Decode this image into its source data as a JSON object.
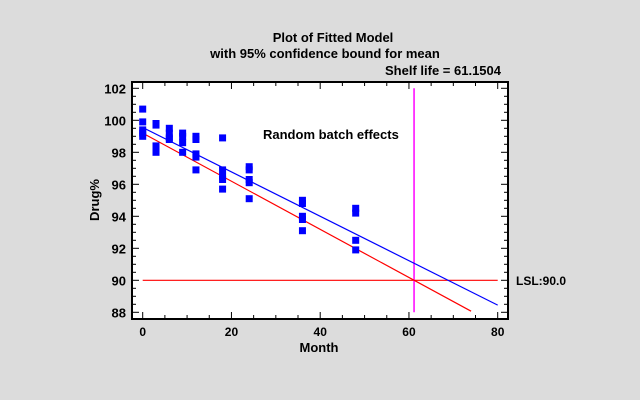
{
  "chart_data": {
    "type": "scatter",
    "title": "Plot of Fitted Model",
    "subtitle": "with 95% confidence bound for mean",
    "annotation_shelf_life": "Shelf life = 61.1504",
    "annotation_text": "Random batch effects",
    "xlabel": "Month",
    "ylabel": "Drug%",
    "xlim": [
      -2,
      82
    ],
    "ylim": [
      87.6,
      102.4
    ],
    "xticks": [
      "0",
      "20",
      "40",
      "60",
      "80"
    ],
    "yticks": [
      "88",
      "90",
      "92",
      "94",
      "96",
      "98",
      "100",
      "102"
    ],
    "grid": false,
    "points": {
      "color": "#0000ff",
      "x": [
        0,
        0,
        0,
        0,
        0,
        3,
        3,
        3,
        3,
        6,
        6,
        6,
        6,
        9,
        9,
        9,
        9,
        12,
        12,
        12,
        12,
        12,
        18,
        18,
        18,
        18,
        18,
        24,
        24,
        24,
        24,
        24,
        36,
        36,
        36,
        36,
        36,
        48,
        48,
        48,
        48
      ],
      "y": [
        100.7,
        99.9,
        99.4,
        99.2,
        99.0,
        99.8,
        99.7,
        98.4,
        98.0,
        99.5,
        99.2,
        98.9,
        98.8,
        99.2,
        99.0,
        98.6,
        98.0,
        99.0,
        98.8,
        97.9,
        97.7,
        96.9,
        98.9,
        96.9,
        96.5,
        96.3,
        95.7,
        97.1,
        96.9,
        96.3,
        96.1,
        95.1,
        95.0,
        94.8,
        94.0,
        93.8,
        93.1,
        94.5,
        94.2,
        92.5,
        91.9
      ]
    },
    "lines": [
      {
        "role": "fitted mean",
        "color": "#0000ff",
        "x": [
          0,
          80
        ],
        "y": [
          99.55,
          88.45
        ]
      },
      {
        "role": "95% lower confidence bound",
        "color": "#ff0000",
        "x": [
          0,
          74
        ],
        "y": [
          99.2,
          88.07
        ]
      }
    ],
    "reference_lines": {
      "lsl": {
        "label": "LSL:90.0",
        "value": 90.0,
        "color": "#ff0000",
        "x": [
          0,
          80
        ]
      },
      "shelf_life": {
        "value": 61.1504,
        "color": "#ff00ff",
        "y": [
          88,
          102
        ]
      }
    }
  }
}
